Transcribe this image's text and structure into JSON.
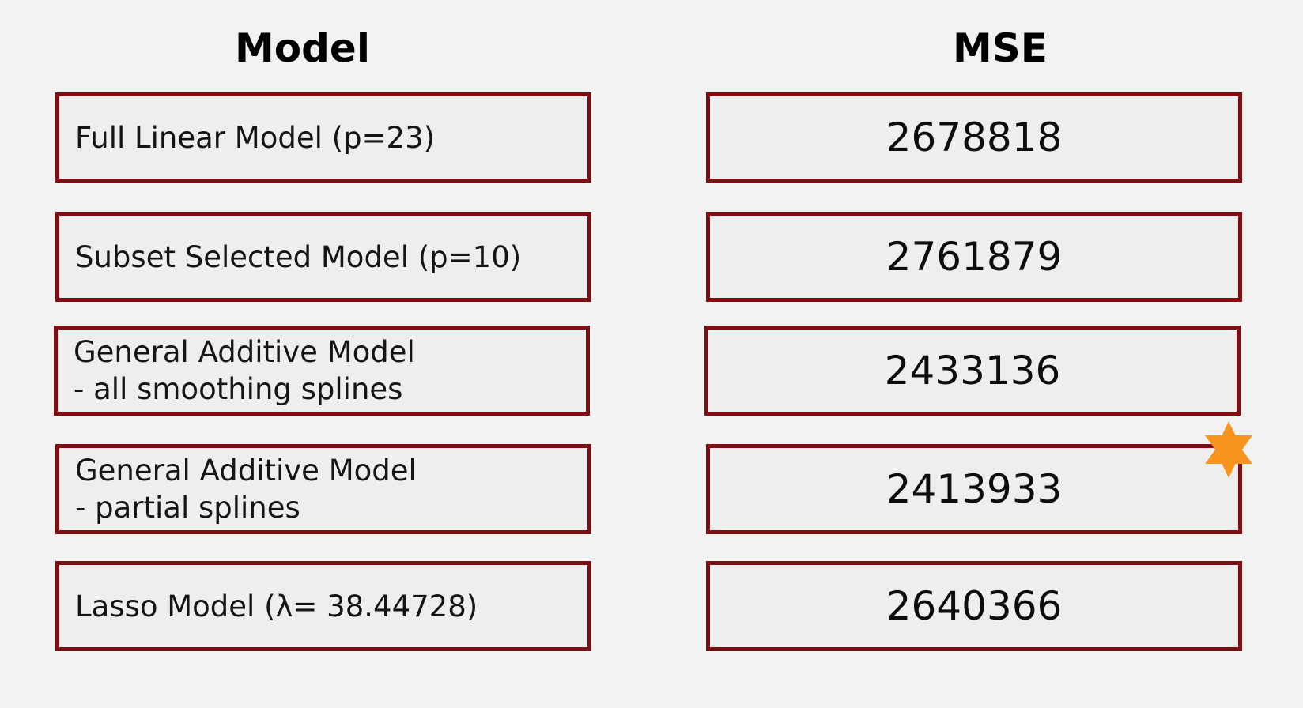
{
  "headers": {
    "model": "Model",
    "mse": "MSE"
  },
  "rows": [
    {
      "model_line1": "Full Linear Model (p=23)",
      "model_line2": "",
      "mse": "2678818"
    },
    {
      "model_line1": "Subset Selected Model (p=10)",
      "model_line2": "",
      "mse": "2761879"
    },
    {
      "model_line1": "General Additive Model",
      "model_line2": "- all smoothing splines",
      "mse": "2433136"
    },
    {
      "model_line1": "General Additive Model",
      "model_line2": "- partial splines",
      "mse": "2413933"
    },
    {
      "model_line1": "Lasso Model (λ= 38.44728)",
      "model_line2": "",
      "mse": "2640366"
    }
  ],
  "highlight": {
    "row": 3,
    "icon": "star-icon",
    "color": "#f7941d"
  },
  "colors": {
    "border": "#7d0f14",
    "cell_bg": "#efeeee",
    "page_bg": "#f3f2f2"
  }
}
